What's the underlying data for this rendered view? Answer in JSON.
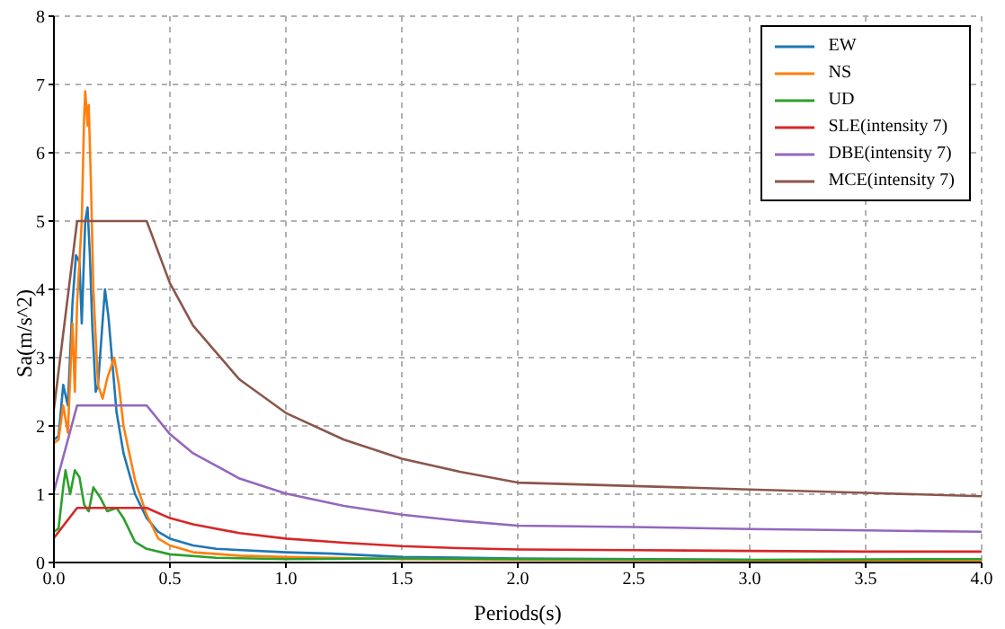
{
  "chart_data": {
    "type": "line",
    "xlabel": "Periods(s)",
    "ylabel": "Sa(m/s^2)",
    "xlim": [
      0,
      4
    ],
    "ylim": [
      0,
      8
    ],
    "xticks": [
      {
        "value": 0,
        "label": "0.0"
      },
      {
        "value": 0.5,
        "label": "0.5"
      },
      {
        "value": 1,
        "label": "1.0"
      },
      {
        "value": 1.5,
        "label": "1.5"
      },
      {
        "value": 2,
        "label": "2.0"
      },
      {
        "value": 2.5,
        "label": "2.5"
      },
      {
        "value": 3,
        "label": "3.0"
      },
      {
        "value": 3.5,
        "label": "3.5"
      },
      {
        "value": 4,
        "label": "4.0"
      }
    ],
    "yticks": [
      0,
      1,
      2,
      3,
      4,
      5,
      6,
      7,
      8
    ],
    "grid": true,
    "legend": "top right",
    "marker": "none",
    "line_style": "solid",
    "series": [
      {
        "name": "EW",
        "color": "#1f77b4",
        "x": [
          0,
          0.02,
          0.04,
          0.06,
          0.08,
          0.095,
          0.11,
          0.12,
          0.135,
          0.145,
          0.155,
          0.165,
          0.18,
          0.19,
          0.22,
          0.235,
          0.25,
          0.27,
          0.3,
          0.35,
          0.4,
          0.45,
          0.5,
          0.6,
          0.7,
          1.0,
          1.2,
          1.5,
          2.0,
          3.0
        ],
        "values": [
          1.8,
          1.85,
          2.6,
          2.3,
          3.8,
          4.5,
          4.4,
          3.5,
          5.0,
          5.2,
          4.5,
          3.5,
          2.5,
          2.6,
          4.0,
          3.6,
          3.0,
          2.2,
          1.6,
          1.0,
          0.65,
          0.45,
          0.35,
          0.25,
          0.2,
          0.15,
          0.13,
          0.08,
          0.06,
          0.04
        ]
      },
      {
        "name": "NS",
        "color": "#ff7f0e",
        "x": [
          0,
          0.02,
          0.04,
          0.06,
          0.08,
          0.09,
          0.1,
          0.12,
          0.13,
          0.135,
          0.145,
          0.15,
          0.16,
          0.17,
          0.19,
          0.21,
          0.23,
          0.26,
          0.28,
          0.3,
          0.35,
          0.4,
          0.45,
          0.5,
          0.6,
          0.8,
          1.0,
          1.5,
          2.0,
          3.0,
          4.0
        ],
        "values": [
          1.75,
          1.8,
          2.3,
          1.9,
          3.5,
          2.5,
          3.8,
          5.0,
          6.5,
          6.9,
          6.4,
          6.7,
          5.5,
          4.0,
          2.6,
          2.4,
          2.7,
          3.0,
          2.6,
          2.0,
          1.2,
          0.7,
          0.35,
          0.25,
          0.15,
          0.1,
          0.08,
          0.05,
          0.04,
          0.03,
          0.02
        ]
      },
      {
        "name": "UD",
        "color": "#2ca02c",
        "x": [
          0,
          0.02,
          0.04,
          0.05,
          0.07,
          0.09,
          0.11,
          0.13,
          0.15,
          0.17,
          0.2,
          0.23,
          0.27,
          0.3,
          0.35,
          0.4,
          0.5,
          0.7,
          1.0,
          1.5,
          2.0,
          3.0,
          4.0
        ],
        "values": [
          0.45,
          0.5,
          1.1,
          1.35,
          1.0,
          1.35,
          1.25,
          0.85,
          0.75,
          1.1,
          0.95,
          0.75,
          0.8,
          0.65,
          0.3,
          0.2,
          0.12,
          0.07,
          0.05,
          0.06,
          0.05,
          0.04,
          0.05
        ]
      },
      {
        "name": "SLE(intensity 7)",
        "color": "#d62728",
        "x": [
          0,
          0.1,
          0.4,
          0.5,
          0.6,
          0.8,
          1.0,
          1.25,
          1.5,
          1.75,
          2.0,
          2.5,
          3.0,
          3.5,
          4.0
        ],
        "values": [
          0.36,
          0.8,
          0.8,
          0.65,
          0.56,
          0.43,
          0.35,
          0.29,
          0.24,
          0.21,
          0.19,
          0.18,
          0.17,
          0.16,
          0.16
        ]
      },
      {
        "name": "DBE(intensity 7)",
        "color": "#9467bd",
        "x": [
          0,
          0.1,
          0.4,
          0.5,
          0.6,
          0.8,
          1.0,
          1.25,
          1.5,
          1.75,
          2.0,
          2.5,
          3.0,
          3.5,
          4.0
        ],
        "values": [
          1.04,
          2.3,
          2.3,
          1.88,
          1.6,
          1.23,
          1.01,
          0.83,
          0.7,
          0.61,
          0.54,
          0.52,
          0.49,
          0.47,
          0.45
        ]
      },
      {
        "name": "MCE(intensity 7)",
        "color": "#8c564b",
        "x": [
          0,
          0.1,
          0.4,
          0.5,
          0.6,
          0.8,
          1.0,
          1.25,
          1.5,
          1.75,
          2.0,
          2.5,
          3.0,
          3.5,
          4.0
        ],
        "values": [
          2.25,
          5,
          5,
          4.09,
          3.47,
          2.68,
          2.19,
          1.8,
          1.52,
          1.33,
          1.17,
          1.12,
          1.07,
          1.02,
          0.97
        ]
      }
    ]
  }
}
